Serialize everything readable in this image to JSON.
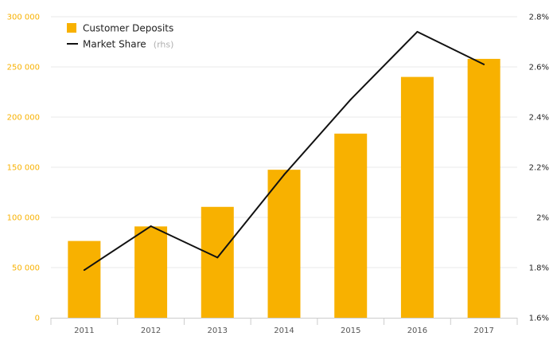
{
  "chart_data": {
    "type": "bar",
    "categories": [
      "2011",
      "2012",
      "2013",
      "2014",
      "2015",
      "2016",
      "2017"
    ],
    "series": [
      {
        "name": "Customer Deposits",
        "type": "bar",
        "axis": "left",
        "values": [
          76500,
          91000,
          110500,
          147500,
          183500,
          240000,
          258000
        ]
      },
      {
        "name": "Market Share",
        "name_suffix": "(rhs)",
        "type": "line",
        "axis": "right",
        "values": [
          1.79,
          1.965,
          1.84,
          2.17,
          2.47,
          2.74,
          2.61
        ]
      }
    ],
    "y_left": {
      "ylim": [
        0,
        300000
      ],
      "ticks": [
        0,
        50000,
        100000,
        150000,
        200000,
        250000,
        300000
      ],
      "tick_labels": [
        "0",
        "50 000",
        "100 000",
        "150 000",
        "200 000",
        "250 000",
        "300 000"
      ]
    },
    "y_right": {
      "ylim": [
        1.6,
        2.8
      ],
      "ticks": [
        1.6,
        1.8,
        2.0,
        2.2,
        2.4,
        2.6,
        2.8
      ],
      "tick_labels": [
        "1.6%",
        "1.8%",
        "2%",
        "2.2%",
        "2.4%",
        "2.6%",
        "2.8%"
      ]
    },
    "grid": true,
    "legend": "top-left",
    "colors": {
      "bar": "#F8B100",
      "line": "#111111",
      "left_ticks": "#F8B100",
      "grid": "#e8e8e8"
    }
  }
}
